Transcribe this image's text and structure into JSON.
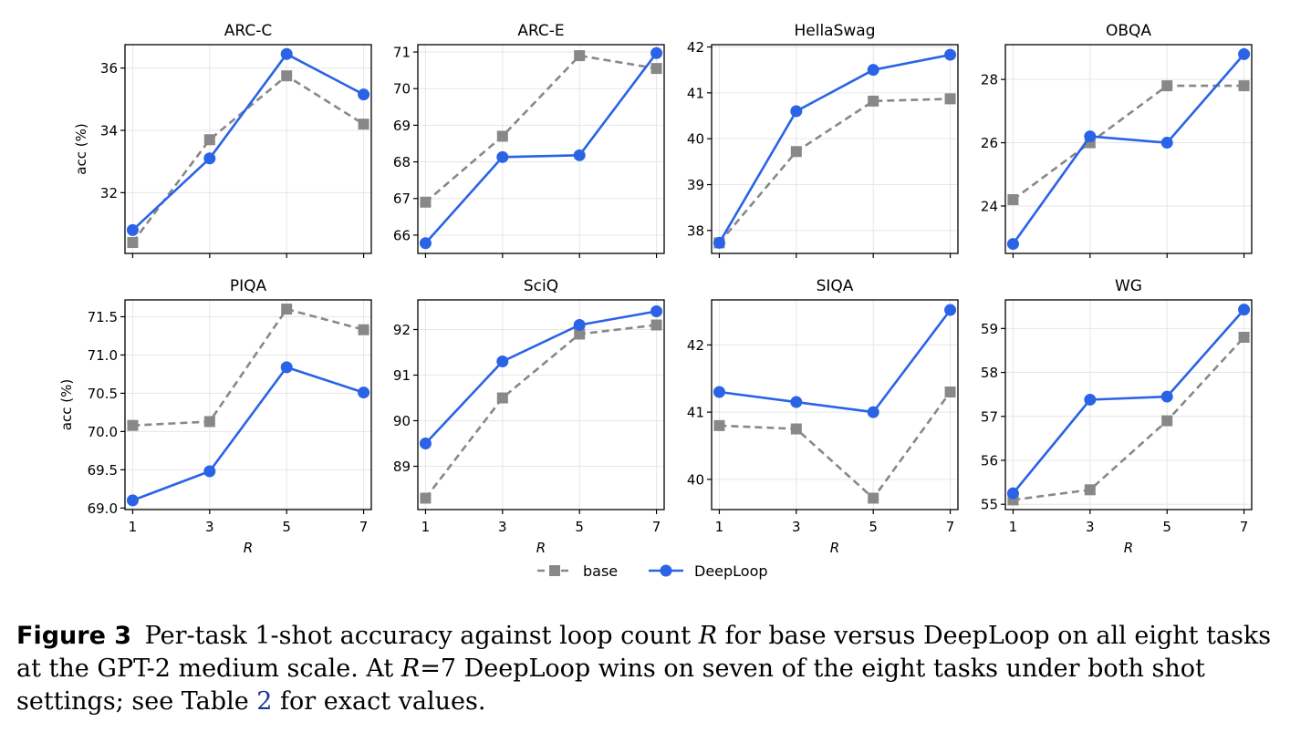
{
  "chart_data": [
    {
      "type": "line",
      "title": "ARC-C",
      "xlabel": "",
      "ylabel": "acc (%)",
      "x": [
        1,
        3,
        5,
        7
      ],
      "xlim": [
        0.8,
        7.2
      ],
      "ylim": [
        30.05,
        36.75
      ],
      "yticks": [
        32,
        34,
        36
      ],
      "ytick_labels": [
        "32",
        "34",
        "36"
      ],
      "series": [
        {
          "name": "base",
          "values": [
            30.4,
            33.7,
            35.75,
            34.2
          ]
        },
        {
          "name": "DeepLoop",
          "values": [
            30.8,
            33.1,
            36.45,
            35.15
          ]
        }
      ],
      "grid": true
    },
    {
      "type": "line",
      "title": "ARC-E",
      "xlabel": "",
      "ylabel": "",
      "x": [
        1,
        3,
        5,
        7
      ],
      "xlim": [
        0.8,
        7.2
      ],
      "ylim": [
        65.5,
        71.2
      ],
      "yticks": [
        66,
        67,
        68,
        69,
        70,
        71
      ],
      "ytick_labels": [
        "66",
        "67",
        "68",
        "69",
        "70",
        "71"
      ],
      "series": [
        {
          "name": "base",
          "values": [
            66.9,
            68.7,
            70.9,
            70.55
          ]
        },
        {
          "name": "DeepLoop",
          "values": [
            65.78,
            68.13,
            68.18,
            70.97
          ]
        }
      ],
      "grid": true
    },
    {
      "type": "line",
      "title": "HellaSwag",
      "xlabel": "",
      "ylabel": "",
      "x": [
        1,
        3,
        5,
        7
      ],
      "xlim": [
        0.8,
        7.2
      ],
      "ylim": [
        37.5,
        42.05
      ],
      "yticks": [
        38,
        39,
        40,
        41,
        42
      ],
      "ytick_labels": [
        "38",
        "39",
        "40",
        "41",
        "42"
      ],
      "series": [
        {
          "name": "base",
          "values": [
            37.73,
            39.72,
            40.82,
            40.87
          ]
        },
        {
          "name": "DeepLoop",
          "values": [
            37.73,
            40.6,
            41.5,
            41.83
          ]
        }
      ],
      "grid": true
    },
    {
      "type": "line",
      "title": "OBQA",
      "xlabel": "",
      "ylabel": "",
      "x": [
        1,
        3,
        5,
        7
      ],
      "xlim": [
        0.8,
        7.2
      ],
      "ylim": [
        22.5,
        29.1
      ],
      "yticks": [
        24,
        26,
        28
      ],
      "ytick_labels": [
        "24",
        "26",
        "28"
      ],
      "series": [
        {
          "name": "base",
          "values": [
            24.2,
            26.0,
            27.8,
            27.8
          ]
        },
        {
          "name": "DeepLoop",
          "values": [
            22.8,
            26.2,
            26.0,
            28.8
          ]
        }
      ],
      "grid": true
    },
    {
      "type": "line",
      "title": "PIQA",
      "xlabel": "R",
      "ylabel": "acc (%)",
      "x": [
        1,
        3,
        5,
        7
      ],
      "xlim": [
        0.8,
        7.2
      ],
      "ylim": [
        68.98,
        71.72
      ],
      "yticks": [
        69.0,
        69.5,
        70.0,
        70.5,
        71.0,
        71.5
      ],
      "ytick_labels": [
        "69.0",
        "69.5",
        "70.0",
        "70.5",
        "71.0",
        "71.5"
      ],
      "xtick_labels": [
        "1",
        "3",
        "5",
        "7"
      ],
      "series": [
        {
          "name": "base",
          "values": [
            70.08,
            70.13,
            71.6,
            71.33
          ]
        },
        {
          "name": "DeepLoop",
          "values": [
            69.1,
            69.48,
            70.84,
            70.51
          ]
        }
      ],
      "grid": true
    },
    {
      "type": "line",
      "title": "SciQ",
      "xlabel": "R",
      "ylabel": "",
      "x": [
        1,
        3,
        5,
        7
      ],
      "xlim": [
        0.8,
        7.2
      ],
      "ylim": [
        88.05,
        92.65
      ],
      "yticks": [
        89,
        90,
        91,
        92
      ],
      "ytick_labels": [
        "89",
        "90",
        "91",
        "92"
      ],
      "xtick_labels": [
        "1",
        "3",
        "5",
        "7"
      ],
      "series": [
        {
          "name": "base",
          "values": [
            88.3,
            90.5,
            91.9,
            92.1
          ]
        },
        {
          "name": "DeepLoop",
          "values": [
            89.5,
            91.3,
            92.1,
            92.4
          ]
        }
      ],
      "grid": true
    },
    {
      "type": "line",
      "title": "SIQA",
      "xlabel": "R",
      "ylabel": "",
      "x": [
        1,
        3,
        5,
        7
      ],
      "xlim": [
        0.8,
        7.2
      ],
      "ylim": [
        39.55,
        42.67
      ],
      "yticks": [
        40,
        41,
        42
      ],
      "ytick_labels": [
        "40",
        "41",
        "42"
      ],
      "xtick_labels": [
        "1",
        "3",
        "5",
        "7"
      ],
      "series": [
        {
          "name": "base",
          "values": [
            40.8,
            40.75,
            39.72,
            41.3
          ]
        },
        {
          "name": "DeepLoop",
          "values": [
            41.3,
            41.15,
            41.0,
            42.52
          ]
        }
      ],
      "grid": true
    },
    {
      "type": "line",
      "title": "WG",
      "xlabel": "R",
      "ylabel": "",
      "x": [
        1,
        3,
        5,
        7
      ],
      "xlim": [
        0.8,
        7.2
      ],
      "ylim": [
        54.88,
        59.65
      ],
      "yticks": [
        55,
        56,
        57,
        58,
        59
      ],
      "ytick_labels": [
        "55",
        "56",
        "57",
        "58",
        "59"
      ],
      "xtick_labels": [
        "1",
        "3",
        "5",
        "7"
      ],
      "series": [
        {
          "name": "base",
          "values": [
            55.1,
            55.33,
            56.9,
            58.8
          ]
        },
        {
          "name": "DeepLoop",
          "values": [
            55.25,
            57.38,
            57.45,
            59.43
          ]
        }
      ],
      "grid": true
    }
  ],
  "legend": {
    "placement": "bottom-center",
    "entries": [
      {
        "label": "base",
        "color": "#888888",
        "style": "dashed",
        "marker": "square"
      },
      {
        "label": "DeepLoop",
        "color": "#2a63e6",
        "style": "solid",
        "marker": "circle"
      }
    ]
  },
  "caption": {
    "label": "Figure 3",
    "part1": "Per-task 1-shot accuracy against loop count ",
    "math1": "R",
    "part2": " for base versus DeepLoop on all eight tasks at the GPT-2 medium scale. At ",
    "math2": "R",
    "part3": "=7 DeepLoop wins on seven of the eight tasks under both shot settings; see Table ",
    "ref": "2",
    "part4": " for exact values."
  },
  "colors": {
    "base": "#888888",
    "deeploop": "#2a63e6",
    "grid": "#e6e6e6"
  }
}
